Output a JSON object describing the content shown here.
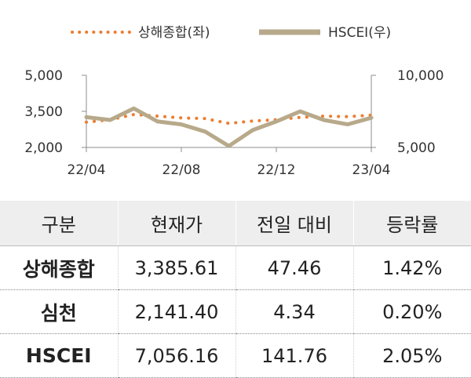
{
  "chart_data": {
    "type": "line",
    "legend": {
      "position": "top",
      "entries": [
        {
          "name": "상해종합(좌)",
          "style": "dotted",
          "color": "#ED7D31"
        },
        {
          "name": "HSCEI(우)",
          "style": "solid",
          "color": "#B7A98A"
        }
      ]
    },
    "x_ticks": [
      "22/04",
      "22/08",
      "22/12",
      "23/04"
    ],
    "y_left": {
      "ticks": [
        "5,000",
        "3,500",
        "2,000"
      ],
      "range": [
        2000,
        5000
      ]
    },
    "y_right": {
      "ticks": [
        "10,000",
        "5,000"
      ],
      "range": [
        5000,
        10000
      ]
    },
    "series": [
      {
        "name": "상해종합(좌)",
        "axis": "left",
        "color": "#ED7D31",
        "style": "dotted",
        "x": [
          "22/04",
          "22/05",
          "22/06",
          "22/07",
          "22/08",
          "22/09",
          "22/10",
          "22/11",
          "22/12",
          "23/01",
          "23/02",
          "23/03",
          "23/04"
        ],
        "values": [
          3050,
          3150,
          3370,
          3300,
          3230,
          3200,
          3000,
          3100,
          3150,
          3250,
          3300,
          3280,
          3340
        ]
      },
      {
        "name": "HSCEI(우)",
        "axis": "right",
        "color": "#B7A98A",
        "style": "solid",
        "x": [
          "22/04",
          "22/05",
          "22/06",
          "22/07",
          "22/08",
          "22/09",
          "22/10",
          "22/11",
          "22/12",
          "23/01",
          "23/02",
          "23/03",
          "23/04"
        ],
        "values": [
          7100,
          6900,
          7700,
          6800,
          6600,
          6100,
          5100,
          6200,
          6800,
          7500,
          6900,
          6600,
          7056
        ]
      }
    ]
  },
  "table": {
    "headers": [
      "구분",
      "현재가",
      "전일 대비",
      "등락률"
    ],
    "rows": [
      [
        "상해종합",
        "3,385.61",
        "47.46",
        "1.42%"
      ],
      [
        "심천",
        "2,141.40",
        "4.34",
        "0.20%"
      ],
      [
        "HSCEI",
        "7,056.16",
        "141.76",
        "2.05%"
      ]
    ]
  }
}
